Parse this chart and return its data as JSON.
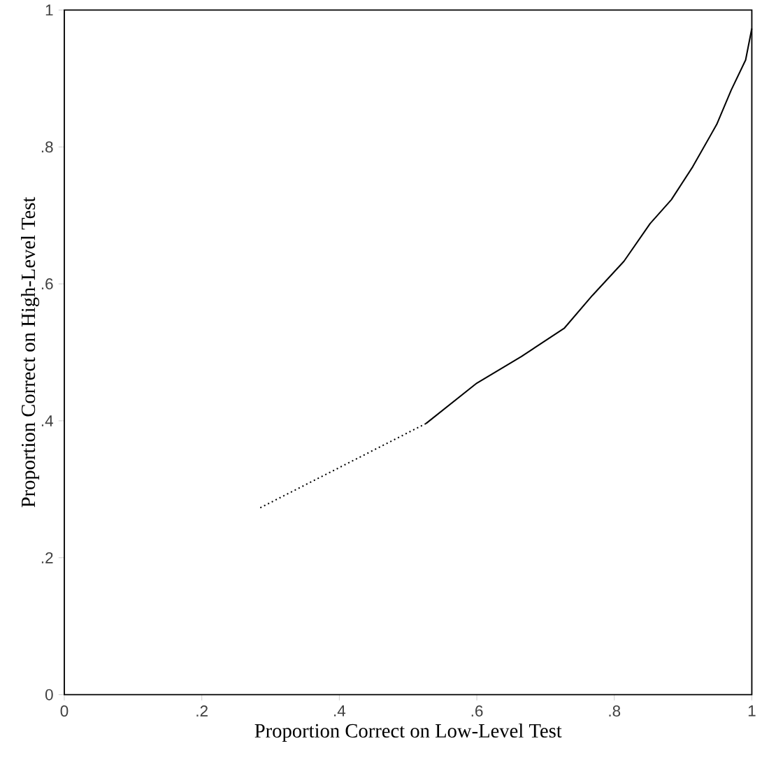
{
  "chart_data": {
    "type": "line",
    "xlabel": "Proportion Correct on Low-Level Test",
    "ylabel": "Proportion Correct on High-Level Test",
    "xlim": [
      0,
      1
    ],
    "ylim": [
      0,
      1
    ],
    "xticks": [
      0,
      {
        "value": 0.2,
        "label": ".2"
      },
      {
        "value": 0.4,
        "label": ".4"
      },
      {
        "value": 0.6,
        "label": ".6"
      },
      {
        "value": 0.8,
        "label": ".8"
      },
      1
    ],
    "yticks": [
      0,
      {
        "value": 0.2,
        "label": ".2"
      },
      {
        "value": 0.4,
        "label": ".4"
      },
      {
        "value": 0.6,
        "label": ".6"
      },
      {
        "value": 0.8,
        "label": ".8"
      },
      1
    ],
    "marker": "none",
    "series": [
      {
        "color": "#000000",
        "line_style": "dotted",
        "x": [
          0.285,
          0.526
        ],
        "values": [
          0.273,
          0.396
        ]
      },
      {
        "color": "#000000",
        "line_style": "solid",
        "x": [
          0.526,
          0.6,
          0.665,
          0.727,
          0.768,
          0.814,
          0.852,
          0.883,
          0.914,
          0.949,
          0.97,
          0.991,
          1.0
        ],
        "values": [
          0.396,
          0.455,
          0.494,
          0.535,
          0.583,
          0.633,
          0.688,
          0.723,
          0.771,
          0.833,
          0.883,
          0.927,
          0.973
        ]
      }
    ]
  }
}
